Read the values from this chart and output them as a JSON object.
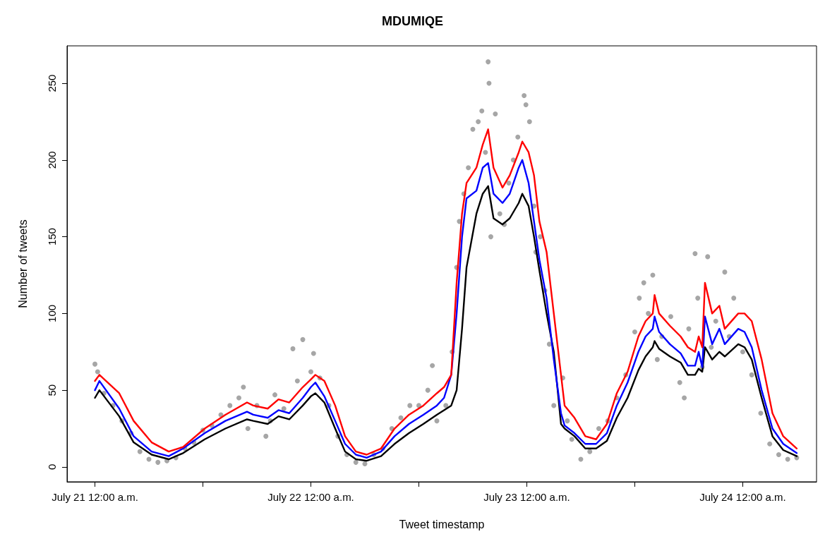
{
  "chart_data": {
    "type": "line",
    "title": "MDUMIQE",
    "xlabel": "Tweet timestamp",
    "ylabel": "Number of tweets",
    "xlim": [
      "--07-20T20:54",
      "--07-24T08:12"
    ],
    "xticks": [
      {
        "value": "--07-21T00:00",
        "label": "July 21 12:00 a.m."
      },
      {
        "value": "--07-21T12:00",
        "label": null
      },
      {
        "value": "--07-22T00:00",
        "label": "July 22 12:00 a.m."
      },
      {
        "value": "--07-22T12:00",
        "label": null
      },
      {
        "value": "--07-23T00:00",
        "label": "July 23 12:00 a.m."
      },
      {
        "value": "--07-23T12:00",
        "label": null
      },
      {
        "value": "--07-24T00:00",
        "label": "July 24 12:00 a.m."
      }
    ],
    "ylim": [
      -9.7,
      274.4
    ],
    "yticks": [
      0,
      50,
      100,
      150,
      200,
      250
    ],
    "grid": false,
    "line_style": "solid",
    "x": [
      "--07-21T00:00",
      "--07-21T00:30",
      "--07-21T02:42",
      "--07-21T04:18",
      "--07-21T06:18",
      "--07-21T08:12",
      "--07-21T09:48",
      "--07-21T12:12",
      "--07-21T14:30",
      "--07-21T16:54",
      "--07-21T17:36",
      "--07-21T19:12",
      "--07-21T20:24",
      "--07-21T21:36",
      "--07-21T23:06",
      "--07-22T00:00",
      "--07-22T00:30",
      "--07-22T01:30",
      "--07-22T02:42",
      "--07-22T03:48",
      "--07-22T05:00",
      "--07-22T06:12",
      "--07-22T07:48",
      "--07-22T09:18",
      "--07-22T10:54",
      "--07-22T12:30",
      "--07-22T14:00",
      "--07-22T14:48",
      "--07-22T15:36",
      "--07-22T16:12",
      "--07-22T16:48",
      "--07-22T17:18",
      "--07-22T18:24",
      "--07-22T19:06",
      "--07-22T19:42",
      "--07-22T20:18",
      "--07-22T21:18",
      "--07-22T22:06",
      "--07-22T23:06",
      "--07-22T23:30",
      "--07-23T00:12",
      "--07-23T00:48",
      "--07-23T01:24",
      "--07-23T02:12",
      "--07-23T03:00",
      "--07-23T03:48",
      "--07-23T04:12",
      "--07-23T05:18",
      "--07-23T06:30",
      "--07-23T07:42",
      "--07-23T08:54",
      "--07-23T10:00",
      "--07-23T11:12",
      "--07-23T12:24",
      "--07-23T13:12",
      "--07-23T14:00",
      "--07-23T14:12",
      "--07-23T14:42",
      "--07-23T15:54",
      "--07-23T17:06",
      "--07-23T17:54",
      "--07-23T18:42",
      "--07-23T19:06",
      "--07-23T19:30",
      "--07-23T19:48",
      "--07-23T20:36",
      "--07-23T21:24",
      "--07-23T22:00",
      "--07-23T23:30",
      "--07-24T00:12",
      "--07-24T01:00",
      "--07-24T02:06",
      "--07-24T03:18",
      "--07-24T04:30",
      "--07-24T06:00"
    ],
    "series": [
      {
        "type": "scatter",
        "marker": "circle",
        "color": "#a6a6a6",
        "x": [
          "--07-21T00:00",
          "--07-21T00:18",
          "--07-21T01:00",
          "--07-21T02:00",
          "--07-21T03:00",
          "--07-21T04:00",
          "--07-21T05:00",
          "--07-21T06:00",
          "--07-21T07:00",
          "--07-21T08:00",
          "--07-21T09:00",
          "--07-21T10:00",
          "--07-21T11:00",
          "--07-21T12:00",
          "--07-21T13:00",
          "--07-21T14:00",
          "--07-21T15:00",
          "--07-21T16:00",
          "--07-21T16:30",
          "--07-21T17:00",
          "--07-21T18:00",
          "--07-21T19:00",
          "--07-21T19:30",
          "--07-21T20:00",
          "--07-21T21:00",
          "--07-21T22:00",
          "--07-21T22:30",
          "--07-21T23:06",
          "--07-22T00:00",
          "--07-22T00:18",
          "--07-22T01:00",
          "--07-22T02:00",
          "--07-22T03:00",
          "--07-22T04:00",
          "--07-22T05:00",
          "--07-22T06:00",
          "--07-22T07:00",
          "--07-22T08:00",
          "--07-22T09:00",
          "--07-22T10:00",
          "--07-22T11:00",
          "--07-22T12:00",
          "--07-22T13:00",
          "--07-22T13:30",
          "--07-22T14:00",
          "--07-22T15:00",
          "--07-22T15:42",
          "--07-22T16:12",
          "--07-22T16:30",
          "--07-22T17:00",
          "--07-22T17:30",
          "--07-22T18:00",
          "--07-22T18:36",
          "--07-22T19:00",
          "--07-22T19:24",
          "--07-22T19:42",
          "--07-22T19:48",
          "--07-22T20:00",
          "--07-22T20:30",
          "--07-22T21:00",
          "--07-22T21:30",
          "--07-22T22:00",
          "--07-22T22:30",
          "--07-22T23:00",
          "--07-22T23:42",
          "--07-22T23:54",
          "--07-23T00:18",
          "--07-23T00:48",
          "--07-23T01:00",
          "--07-23T01:30",
          "--07-23T02:00",
          "--07-23T02:30",
          "--07-23T03:00",
          "--07-23T04:00",
          "--07-23T04:30",
          "--07-23T05:00",
          "--07-23T06:00",
          "--07-23T07:00",
          "--07-23T08:00",
          "--07-23T09:00",
          "--07-23T10:00",
          "--07-23T11:00",
          "--07-23T12:00",
          "--07-23T12:30",
          "--07-23T13:00",
          "--07-23T13:30",
          "--07-23T14:00",
          "--07-23T14:30",
          "--07-23T15:00",
          "--07-23T16:00",
          "--07-23T17:00",
          "--07-23T17:30",
          "--07-23T18:00",
          "--07-23T18:42",
          "--07-23T19:00",
          "--07-23T19:30",
          "--07-23T20:06",
          "--07-23T20:30",
          "--07-23T21:00",
          "--07-23T22:00",
          "--07-23T22:30",
          "--07-23T23:00",
          "--07-24T00:00",
          "--07-24T01:00",
          "--07-24T02:00",
          "--07-24T03:00",
          "--07-24T04:00",
          "--07-24T05:00",
          "--07-24T06:00"
        ],
        "values": [
          67,
          62,
          48,
          40,
          30,
          22,
          10,
          5,
          3,
          4,
          6,
          12,
          16,
          24,
          27,
          34,
          40,
          45,
          52,
          25,
          40,
          20,
          30,
          47,
          38,
          77,
          56,
          83,
          62,
          74,
          58,
          40,
          20,
          8,
          3,
          2,
          8,
          12,
          25,
          32,
          40,
          40,
          50,
          66,
          30,
          40,
          75,
          130,
          160,
          178,
          195,
          220,
          225,
          232,
          205,
          264,
          250,
          150,
          230,
          165,
          158,
          185,
          200,
          215,
          242,
          236,
          225,
          170,
          140,
          150,
          115,
          80,
          40,
          58,
          30,
          18,
          5,
          10,
          25,
          30,
          45,
          60,
          88,
          110,
          120,
          100,
          125,
          70,
          85,
          98,
          55,
          45,
          90,
          139,
          110,
          65,
          137,
          78,
          95,
          127,
          85,
          110,
          75,
          60,
          35,
          15,
          8,
          5,
          6
        ]
      },
      {
        "marker": "none",
        "color": "#000000",
        "values": [
          45,
          50,
          33,
          16,
          8,
          5,
          9,
          18,
          25,
          31,
          30,
          28,
          33,
          31,
          40,
          46,
          48,
          42,
          25,
          10,
          5,
          4,
          7,
          15,
          22,
          28,
          34,
          37,
          40,
          50,
          90,
          130,
          165,
          178,
          183,
          162,
          158,
          162,
          172,
          178,
          170,
          150,
          128,
          100,
          75,
          28,
          25,
          20,
          12,
          12,
          17,
          32,
          45,
          63,
          72,
          78,
          82,
          77,
          72,
          68,
          60,
          60,
          64,
          62,
          78,
          70,
          75,
          72,
          80,
          78,
          70,
          45,
          20,
          11,
          7
        ]
      },
      {
        "marker": "none",
        "color": "#0000ff",
        "values": [
          50,
          56,
          38,
          20,
          10,
          7,
          12,
          22,
          30,
          36,
          34,
          32,
          37,
          35,
          45,
          52,
          55,
          46,
          30,
          15,
          8,
          6,
          10,
          20,
          28,
          34,
          40,
          45,
          60,
          100,
          150,
          175,
          180,
          195,
          198,
          178,
          172,
          178,
          195,
          200,
          185,
          160,
          135,
          110,
          70,
          35,
          27,
          22,
          15,
          15,
          22,
          40,
          55,
          75,
          85,
          90,
          98,
          88,
          80,
          74,
          66,
          66,
          75,
          65,
          98,
          80,
          90,
          80,
          90,
          88,
          78,
          50,
          25,
          15,
          9
        ]
      },
      {
        "marker": "none",
        "color": "#ff0000",
        "values": [
          56,
          60,
          48,
          30,
          16,
          10,
          13,
          25,
          34,
          42,
          40,
          38,
          44,
          42,
          52,
          57,
          60,
          56,
          40,
          20,
          10,
          8,
          12,
          25,
          34,
          40,
          48,
          52,
          60,
          120,
          165,
          185,
          195,
          210,
          220,
          195,
          182,
          190,
          205,
          212,
          205,
          190,
          160,
          140,
          100,
          60,
          40,
          32,
          20,
          18,
          28,
          48,
          62,
          85,
          95,
          100,
          112,
          100,
          92,
          85,
          78,
          75,
          85,
          78,
          120,
          100,
          105,
          90,
          100,
          100,
          95,
          70,
          35,
          20,
          12
        ]
      }
    ]
  }
}
